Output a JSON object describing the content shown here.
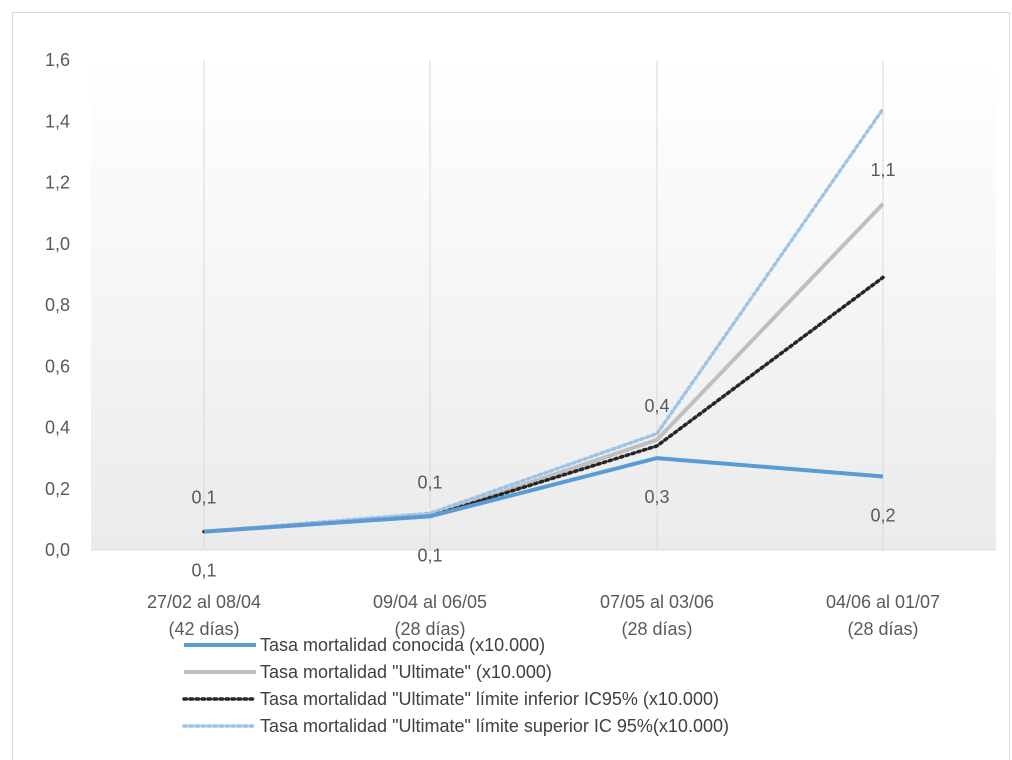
{
  "chart_data": {
    "type": "line",
    "categories": [
      [
        "27/02 al 08/04",
        "(42 días)"
      ],
      [
        "09/04 al 06/05",
        "(28 días)"
      ],
      [
        "07/05 al 03/06",
        "(28 días)"
      ],
      [
        "04/06 al 01/07",
        "(28 días)"
      ]
    ],
    "ylim": [
      0,
      1.6
    ],
    "yticks": [
      "0,0",
      "0,2",
      "0,4",
      "0,6",
      "0,8",
      "1,0",
      "1,2",
      "1,4",
      "1,6"
    ],
    "grid": "vertical category lines",
    "background": "light gray gradient in plot area",
    "legend_position": "bottom",
    "series": [
      {
        "name": "Tasa mortalidad conocida (x10.000)",
        "values": [
          0.06,
          0.11,
          0.3,
          0.24
        ],
        "labels": [
          "0,1",
          "0,1",
          "0,3",
          "0,2"
        ],
        "label_position": "below",
        "color": "#5b9bd5",
        "style": "solid"
      },
      {
        "name": "Tasa mortalidad \"Ultimate\" (x10.000)",
        "values": [
          0.06,
          0.11,
          0.36,
          1.13
        ],
        "labels": [
          "0,1",
          "0,1",
          "0,4",
          "1,1"
        ],
        "label_position": "above",
        "color": "#bfbfbf",
        "style": "solid"
      },
      {
        "name": "Tasa mortalidad \"Ultimate\" límite inferior IC95% (x10.000)",
        "values": [
          0.06,
          0.11,
          0.34,
          0.89
        ],
        "color": "#262626",
        "style": "dotted"
      },
      {
        "name": "Tasa mortalidad \"Ultimate\" límite superior IC 95%(x10.000)",
        "values": [
          0.06,
          0.12,
          0.38,
          1.44
        ],
        "color": "#9dc3e6",
        "style": "dotted"
      }
    ]
  }
}
